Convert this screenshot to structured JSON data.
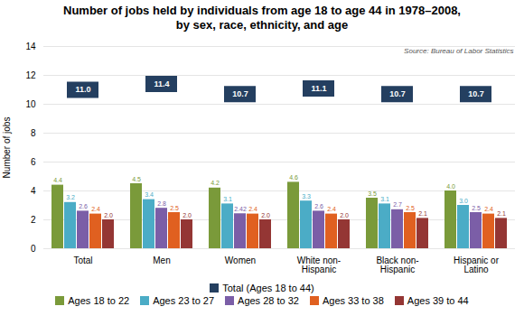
{
  "chart_data": {
    "type": "bar",
    "title": "Number of jobs held by individuals from age 18 to age 44 in 1978–2008,\nby sex, race, ethnicity, and age",
    "annotation": "Source: Bureau of Labor Statistics",
    "ylabel": "Number of jobs",
    "categories": [
      "Total",
      "Men",
      "Women",
      "White non-\nHispanic",
      "Black non-\nHispanic",
      "Hispanic or\nLatino"
    ],
    "series": [
      {
        "name": "Total (Ages 18 to 44)",
        "type": "box",
        "color": "#243f60",
        "values": [
          11.0,
          11.4,
          10.7,
          11.1,
          10.7,
          10.7
        ],
        "value_labels": [
          "11.0",
          "11.4",
          "10.7",
          "11.1",
          "10.7",
          "10.7"
        ]
      },
      {
        "name": "Ages 18 to 22",
        "type": "bar",
        "color": "#7a9a3a",
        "values": [
          4.4,
          4.5,
          4.2,
          4.6,
          3.5,
          4.0
        ],
        "value_labels": [
          "4.4",
          "4.5",
          "4.2",
          "4.6",
          "3.5",
          "4.0"
        ]
      },
      {
        "name": "Ages 23 to 27",
        "type": "bar",
        "color": "#4bacc6",
        "values": [
          3.2,
          3.4,
          3.1,
          3.3,
          3.1,
          3.0
        ],
        "value_labels": [
          "3.2",
          "3.4",
          "3.1",
          "3.3",
          "3.1",
          "3.0"
        ]
      },
      {
        "name": "Ages 28 to 32",
        "type": "bar",
        "color": "#7b5ea7",
        "values": [
          2.6,
          2.8,
          2.42,
          2.6,
          2.7,
          2.5
        ],
        "value_labels": [
          "2.6",
          "2.8",
          "2.42",
          "2.6",
          "2.7",
          "2.5"
        ]
      },
      {
        "name": "Ages 33 to 38",
        "type": "bar",
        "color": "#e06020",
        "values": [
          2.4,
          2.5,
          2.4,
          2.4,
          2.5,
          2.4
        ],
        "value_labels": [
          "2.4",
          "2.5",
          "2.4",
          "2.4",
          "2.5",
          "2.4"
        ]
      },
      {
        "name": "Ages 39 to 44",
        "type": "bar",
        "color": "#943634",
        "values": [
          2.0,
          2.0,
          2.0,
          2.0,
          2.1,
          2.1
        ],
        "value_labels": [
          "2.0",
          "2.0",
          "2.0",
          "2.0",
          "2.1",
          "2.1"
        ]
      }
    ],
    "ylim": [
      0,
      14
    ],
    "yticks": [
      0,
      2,
      4,
      6,
      8,
      10,
      12,
      14
    ],
    "grid": true,
    "data_labels": true,
    "legend": "bottom"
  }
}
